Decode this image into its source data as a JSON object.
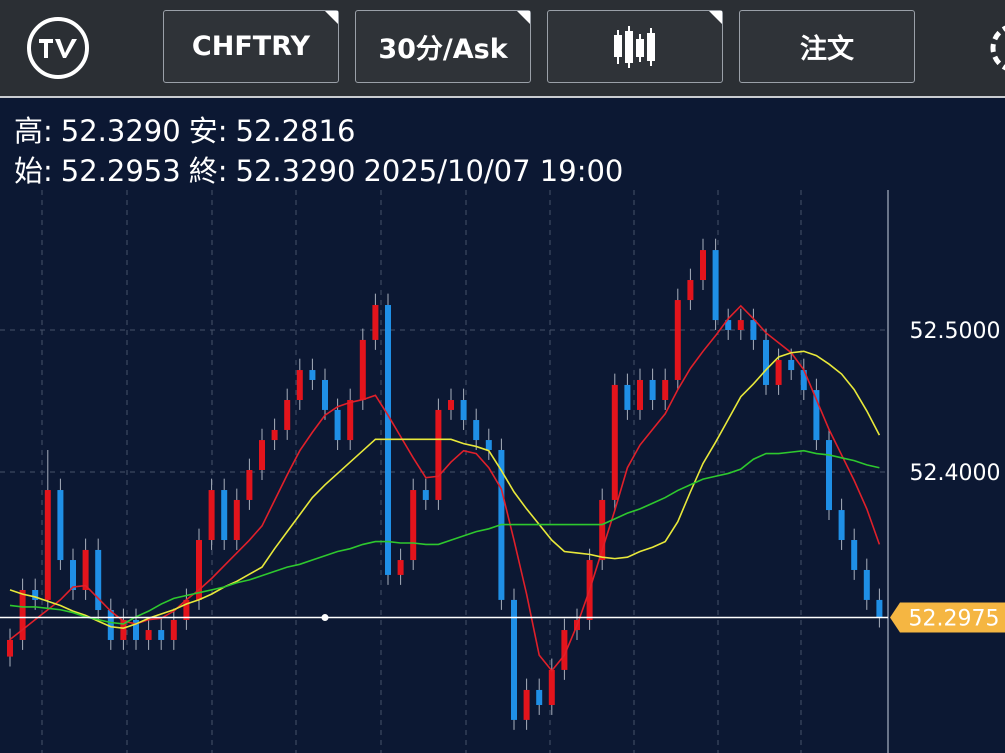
{
  "toolbar": {
    "symbol": "CHFTRY",
    "interval": "30分/Ask",
    "order": "注文"
  },
  "info": {
    "high_label": "高:",
    "high": "52.3290",
    "low_label": "安:",
    "low": "52.2816",
    "open_label": "始:",
    "open": "52.2953",
    "close_label": "終:",
    "close": "52.3290",
    "time": "2025/10/07 19:00"
  },
  "chart_data": {
    "type": "candlestick",
    "up_color": "#e3141c",
    "down_color": "#1f8fe6",
    "wick_color": "#a9b0bd",
    "ylim": [
      52.2021,
      52.5986
    ],
    "yticks": [
      {
        "value": 52.5,
        "label": "52.5000"
      },
      {
        "value": 52.4,
        "label": "52.4000"
      }
    ],
    "grid": true,
    "current_price": 52.2975,
    "current_price_color": "#f5b642",
    "open": [
      52.27,
      52.2817,
      52.3169,
      52.3099,
      52.3873,
      52.338,
      52.3169,
      52.3451,
      52.3028,
      52.2817,
      52.2958,
      52.2817,
      52.2887,
      52.2817,
      52.2958,
      52.3099,
      52.3521,
      52.3873,
      52.3521,
      52.3803,
      52.4014,
      52.4225,
      52.4296,
      52.4507,
      52.4718,
      52.4648,
      52.4437,
      52.4225,
      52.4507,
      52.493,
      52.5176,
      52.3275,
      52.338,
      52.3873,
      52.3803,
      52.4437,
      52.4507,
      52.4366,
      52.4225,
      52.4155,
      52.3099,
      52.2254,
      52.2465,
      52.2359,
      52.2606,
      52.2887,
      52.2958,
      52.338,
      52.3803,
      52.4613,
      52.4437,
      52.4648,
      52.4507,
      52.4648,
      52.5211,
      52.5352,
      52.5563,
      52.507,
      52.5,
      52.507,
      52.493,
      52.4613,
      52.4789,
      52.4718,
      52.4577,
      52.4225,
      52.3732,
      52.3521,
      52.331,
      52.3099
    ],
    "high": [
      52.2897,
      52.3249,
      52.3249,
      52.4155,
      52.3953,
      52.346,
      52.3531,
      52.3531,
      52.3108,
      52.3038,
      52.3038,
      52.2967,
      52.2967,
      52.3038,
      52.3179,
      52.3601,
      52.3953,
      52.3953,
      52.3883,
      52.4094,
      52.4305,
      52.4376,
      52.4587,
      52.4798,
      52.4798,
      52.4728,
      52.4517,
      52.4587,
      52.501,
      52.5256,
      52.5256,
      52.346,
      52.3953,
      52.3953,
      52.4517,
      52.4587,
      52.4587,
      52.4446,
      52.4305,
      52.4235,
      52.3179,
      52.2545,
      52.2545,
      52.2686,
      52.2967,
      52.3038,
      52.346,
      52.3883,
      52.4693,
      52.4693,
      52.4728,
      52.4728,
      52.4728,
      52.5291,
      52.5432,
      52.5643,
      52.5643,
      52.515,
      52.515,
      52.515,
      52.501,
      52.4869,
      52.4869,
      52.4798,
      52.4657,
      52.4305,
      52.3812,
      52.3601,
      52.339,
      52.3179
    ],
    "low": [
      52.263,
      52.2747,
      52.3029,
      52.3029,
      52.331,
      52.3099,
      52.3099,
      52.2958,
      52.2747,
      52.2747,
      52.2747,
      52.2747,
      52.2747,
      52.2747,
      52.2888,
      52.3029,
      52.3451,
      52.3451,
      52.3451,
      52.3733,
      52.3944,
      52.4155,
      52.4226,
      52.4437,
      52.4578,
      52.4367,
      52.4155,
      52.4155,
      52.4437,
      52.486,
      52.3205,
      52.3205,
      52.331,
      52.3733,
      52.3733,
      52.4367,
      52.4296,
      52.4155,
      52.4085,
      52.3029,
      52.2184,
      52.2184,
      52.2289,
      52.2289,
      52.2536,
      52.2817,
      52.2888,
      52.331,
      52.3733,
      52.4367,
      52.4367,
      52.4437,
      52.4437,
      52.4578,
      52.5141,
      52.5282,
      52.5,
      52.493,
      52.493,
      52.486,
      52.4543,
      52.4543,
      52.4648,
      52.4507,
      52.4155,
      52.3662,
      52.3451,
      52.324,
      52.3029,
      52.2905
    ],
    "close": [
      52.2817,
      52.3169,
      52.3099,
      52.3873,
      52.338,
      52.3169,
      52.3451,
      52.3028,
      52.2817,
      52.2958,
      52.2817,
      52.2887,
      52.2817,
      52.2958,
      52.3099,
      52.3521,
      52.3873,
      52.3521,
      52.3803,
      52.4014,
      52.4225,
      52.4296,
      52.4507,
      52.4718,
      52.4648,
      52.4437,
      52.4225,
      52.4507,
      52.493,
      52.5176,
      52.3275,
      52.338,
      52.3873,
      52.3803,
      52.4437,
      52.4507,
      52.4366,
      52.4225,
      52.4155,
      52.3099,
      52.2254,
      52.2465,
      52.2359,
      52.2606,
      52.2887,
      52.2958,
      52.338,
      52.3803,
      52.4613,
      52.4437,
      52.4648,
      52.4507,
      52.4648,
      52.5211,
      52.5352,
      52.5563,
      52.507,
      52.5,
      52.507,
      52.493,
      52.4613,
      52.4789,
      52.4718,
      52.4577,
      52.4225,
      52.3732,
      52.3521,
      52.331,
      52.3099,
      52.2975
    ],
    "moving_averages": [
      {
        "color": "#e0202a",
        "values": [
          52.282,
          52.289,
          52.296,
          52.303,
          52.31,
          52.319,
          52.32,
          52.311,
          52.302,
          52.295,
          52.293,
          52.296,
          52.297,
          52.302,
          52.31,
          52.317,
          52.325,
          52.334,
          52.343,
          52.352,
          52.362,
          52.38,
          52.398,
          52.415,
          52.428,
          52.44,
          52.446,
          52.449,
          52.451,
          52.454,
          52.44,
          52.425,
          52.41,
          52.396,
          52.397,
          52.407,
          52.415,
          52.413,
          52.403,
          52.388,
          52.352,
          52.314,
          52.271,
          52.26,
          52.271,
          52.292,
          52.317,
          52.345,
          52.373,
          52.403,
          52.419,
          52.43,
          52.441,
          52.458,
          52.473,
          52.485,
          52.496,
          52.508,
          52.517,
          52.508,
          52.498,
          52.491,
          52.484,
          52.472,
          52.451,
          52.43,
          52.412,
          52.394,
          52.374,
          52.349
        ]
      },
      {
        "color": "#e8e83a",
        "values": [
          52.317,
          52.314,
          52.312,
          52.309,
          52.306,
          52.302,
          52.299,
          52.295,
          52.291,
          52.29,
          52.293,
          52.297,
          52.3,
          52.303,
          52.307,
          52.31,
          52.314,
          52.319,
          52.323,
          52.328,
          52.333,
          52.346,
          52.358,
          52.37,
          52.382,
          52.391,
          52.399,
          52.407,
          52.415,
          52.423,
          52.423,
          52.423,
          52.423,
          52.423,
          52.423,
          52.423,
          52.42,
          52.418,
          52.415,
          52.401,
          52.386,
          52.374,
          52.363,
          52.352,
          52.344,
          52.343,
          52.342,
          52.34,
          52.339,
          52.34,
          52.344,
          52.347,
          52.351,
          52.365,
          52.386,
          52.406,
          52.421,
          52.437,
          52.453,
          52.462,
          52.472,
          52.481,
          52.484,
          52.485,
          52.482,
          52.476,
          52.469,
          52.458,
          52.443,
          52.426
        ]
      },
      {
        "color": "#2ec82e",
        "values": [
          52.306,
          52.305,
          52.305,
          52.304,
          52.303,
          52.301,
          52.298,
          52.296,
          52.294,
          52.293,
          52.298,
          52.302,
          52.307,
          52.311,
          52.313,
          52.315,
          52.317,
          52.319,
          52.322,
          52.324,
          52.327,
          52.33,
          52.333,
          52.335,
          52.338,
          52.341,
          52.344,
          52.346,
          52.349,
          52.351,
          52.351,
          52.35,
          52.35,
          52.349,
          52.349,
          52.352,
          52.355,
          52.358,
          52.36,
          52.363,
          52.363,
          52.363,
          52.363,
          52.363,
          52.363,
          52.363,
          52.363,
          52.363,
          52.367,
          52.371,
          52.374,
          52.378,
          52.382,
          52.387,
          52.391,
          52.395,
          52.397,
          52.399,
          52.402,
          52.409,
          52.413,
          52.413,
          52.414,
          52.415,
          52.413,
          52.412,
          52.41,
          52.408,
          52.405,
          52.403
        ]
      }
    ]
  }
}
